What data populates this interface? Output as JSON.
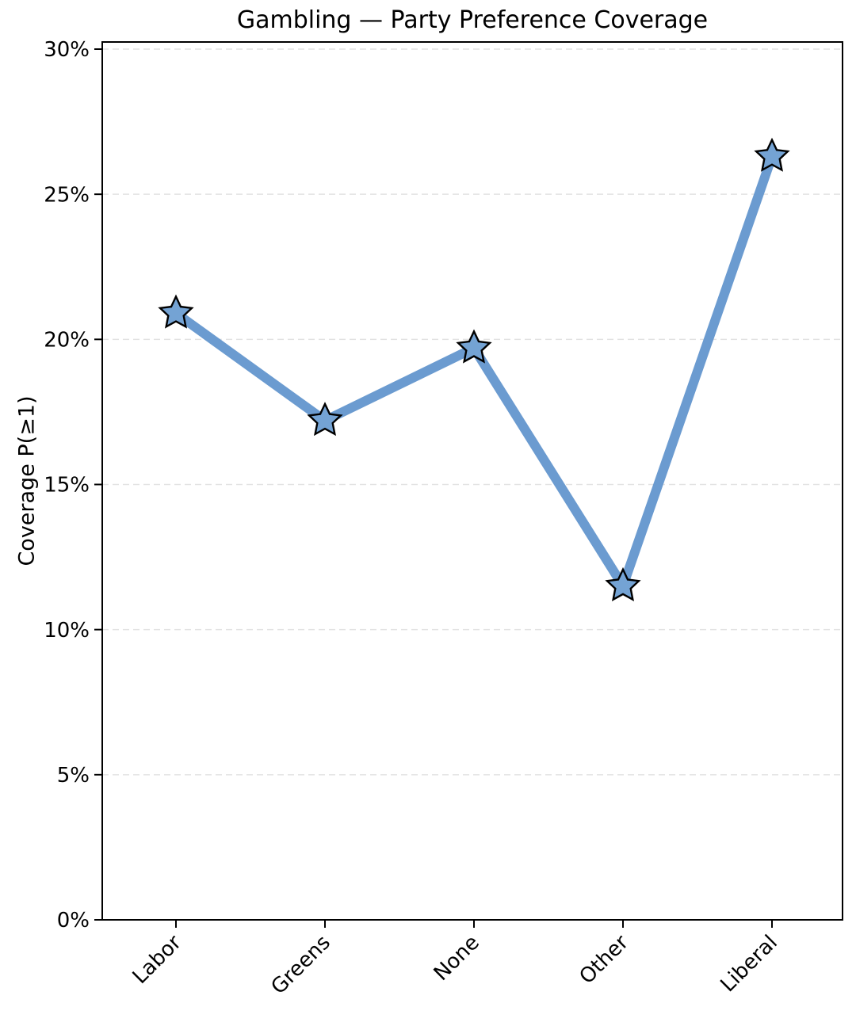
{
  "chart_data": {
    "type": "line",
    "title": "Gambling — Party Preference Coverage",
    "ylabel": "Coverage P(≥1)",
    "xlabel": "",
    "categories": [
      "Labor",
      "Greens",
      "None",
      "Other",
      "Liberal"
    ],
    "series": [
      {
        "name": "Coverage P(≥1)",
        "values": [
          20.9,
          17.2,
          19.7,
          11.5,
          26.3
        ]
      }
    ],
    "ylim": [
      0,
      30.3
    ],
    "yticks": [
      0,
      5,
      10,
      15,
      20,
      25,
      30
    ],
    "ytick_suffix": "%",
    "xtick_rotation": 45,
    "grid": {
      "axis": "y",
      "style": "dashed",
      "color": "#e2e2e2"
    },
    "legend": "none",
    "marker": "star",
    "colors": {
      "line": "#6b9bd0",
      "marker_fill": "#74a3d4",
      "marker_edge": "#000000",
      "spine": "#000000",
      "text": "#000000"
    }
  }
}
